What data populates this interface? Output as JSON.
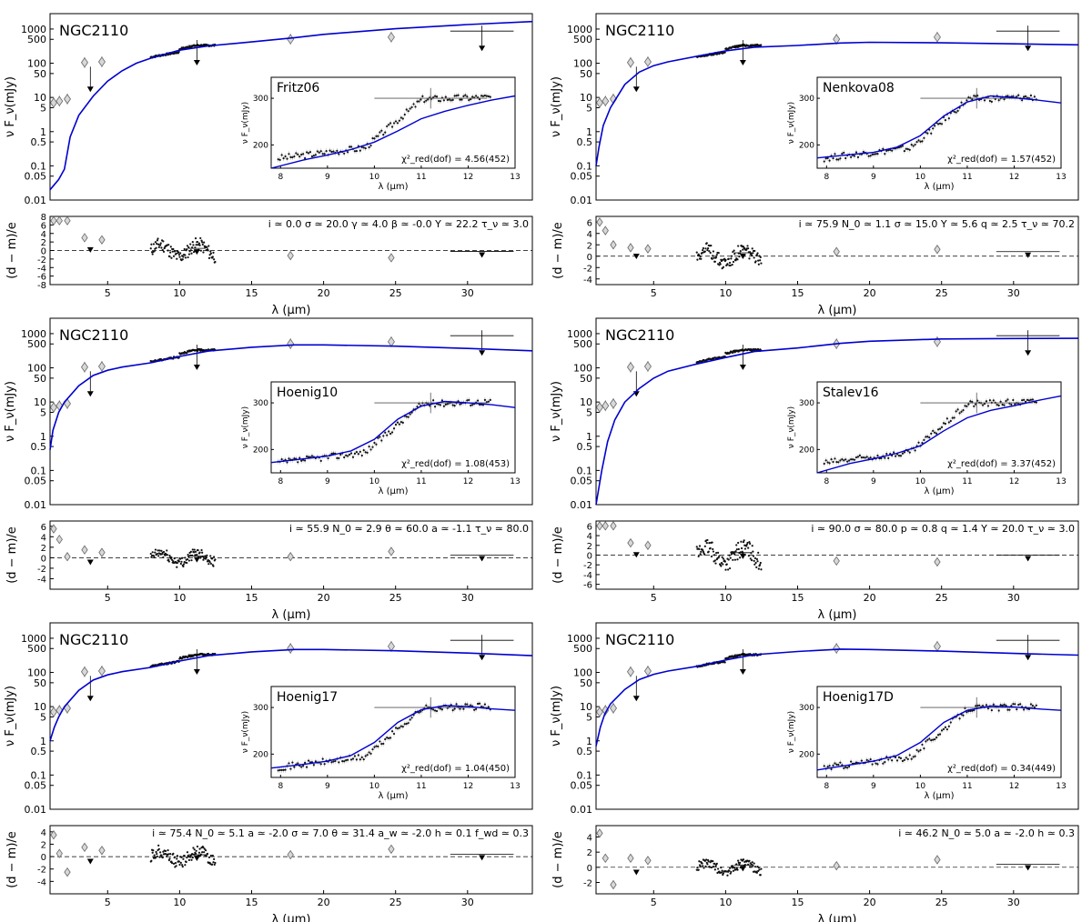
{
  "figure": {
    "object": "NGC2110",
    "sed_ylabel": "ν F_ν(mJy)",
    "res_ylabel": "(d − m)/e",
    "xlabel": "λ (μm)",
    "inset_ylabel": "ν F_ν(mJy)",
    "inset_xlabel": "λ (μm)",
    "chi2_prefix": "χ²_red(dof) = "
  },
  "chart_data": {
    "type": "scatter",
    "sed_xlim": [
      1,
      34.5
    ],
    "sed_ylim_log10": [
      -2,
      3.45
    ],
    "sed_yticks": [
      {
        "v": 1000,
        "l": "1000"
      },
      {
        "v": 500,
        "l": "500"
      },
      {
        "v": 100,
        "l": "100"
      },
      {
        "v": 50,
        "l": "50"
      },
      {
        "v": 10,
        "l": "10"
      },
      {
        "v": 5,
        "l": "5"
      },
      {
        "v": 1,
        "l": "1"
      },
      {
        "v": 0.5,
        "l": "0.5"
      },
      {
        "v": 0.1,
        "l": "0.1"
      },
      {
        "v": 0.05,
        "l": "0.05"
      },
      {
        "v": 0.01,
        "l": "0.01"
      }
    ],
    "sed_xticks": [
      5,
      10,
      15,
      20,
      25,
      30
    ],
    "inset_xlim": [
      7.8,
      13
    ],
    "inset_ylim": [
      150,
      345
    ],
    "inset_xticks": [
      8,
      9,
      10,
      11,
      12,
      13
    ],
    "inset_yticks": [
      200,
      300
    ],
    "photometry": [
      {
        "x": 1.25,
        "y": 7
      },
      {
        "x": 1.65,
        "y": 7.8
      },
      {
        "x": 2.2,
        "y": 9
      },
      {
        "x": 3.4,
        "y": 105
      },
      {
        "x": 4.6,
        "y": 110
      },
      {
        "x": 17.7,
        "y": 505
      },
      {
        "x": 24.7,
        "y": 580
      }
    ],
    "upper_limits": [
      {
        "x": 3.8,
        "y": 55,
        "xerr": 0
      },
      {
        "x": 11.2,
        "y": 330,
        "xerr": 0.6
      },
      {
        "x": 31.0,
        "y": 870,
        "xerr": 2.2
      }
    ],
    "panels": [
      {
        "model": "Fritz06",
        "chi2": "4.56(452)",
        "params": [
          "i ≃ 0.0",
          "σ ≃ 20.0",
          "γ ≃ 4.0",
          "β ≃ -0.0",
          "Y ≃ 22.2",
          "τ_ν ≃ 3.0"
        ],
        "res_ylim": [
          -8,
          8
        ],
        "res_yticks": [
          8,
          6,
          4,
          2,
          0,
          -2,
          -4,
          -6,
          -8
        ],
        "res_phot": [
          7,
          7,
          7,
          3,
          2.5,
          -1.2,
          -1.7
        ],
        "res_ul": [
          1,
          0.5,
          -0.2
        ],
        "res_spec_amp": 3.2,
        "model_sed": [
          [
            1,
            0.02
          ],
          [
            1.6,
            0.04
          ],
          [
            2.0,
            0.08
          ],
          [
            2.4,
            0.7
          ],
          [
            3,
            3
          ],
          [
            4,
            11
          ],
          [
            5,
            30
          ],
          [
            6,
            60
          ],
          [
            7,
            100
          ],
          [
            8,
            140
          ],
          [
            10,
            240
          ],
          [
            12,
            320
          ],
          [
            15,
            420
          ],
          [
            18,
            560
          ],
          [
            20,
            700
          ],
          [
            25,
            1020
          ],
          [
            30,
            1350
          ],
          [
            34.5,
            1650
          ]
        ],
        "model_inset": [
          [
            7.8,
            145
          ],
          [
            8.5,
            168
          ],
          [
            9,
            178
          ],
          [
            9.5,
            190
          ],
          [
            10,
            206
          ],
          [
            10.5,
            230
          ],
          [
            11,
            256
          ],
          [
            11.5,
            272
          ],
          [
            12,
            285
          ],
          [
            12.5,
            296
          ],
          [
            13,
            305
          ]
        ]
      },
      {
        "model": "Nenkova08",
        "chi2": "1.57(452)",
        "params": [
          "i ≃ 75.9",
          "N_0 ≃ 1.1",
          "σ ≃ 15.0",
          "Y ≃ 5.6",
          "q ≃ 2.5",
          "τ_ν ≃ 70.2"
        ],
        "res_ylim": [
          -5,
          7
        ],
        "res_yticks": [
          6,
          4,
          2,
          0,
          -2,
          -4
        ],
        "res_phot": [
          6,
          4.5,
          2,
          1.5,
          1.3,
          0.8,
          1.2
        ],
        "res_ul": [
          0.6,
          0.6,
          0.8
        ],
        "res_spec_amp": 2.5,
        "model_sed": [
          [
            1,
            0.1
          ],
          [
            1.2,
            0.35
          ],
          [
            1.5,
            1.5
          ],
          [
            2,
            5
          ],
          [
            3,
            24
          ],
          [
            4,
            55
          ],
          [
            5,
            85
          ],
          [
            6,
            110
          ],
          [
            8,
            160
          ],
          [
            10,
            230
          ],
          [
            12,
            295
          ],
          [
            15,
            330
          ],
          [
            18,
            390
          ],
          [
            20,
            410
          ],
          [
            25,
            395
          ],
          [
            30,
            370
          ],
          [
            34.5,
            345
          ]
        ],
        "model_inset": [
          [
            7.8,
            172
          ],
          [
            8.5,
            179
          ],
          [
            9,
            184
          ],
          [
            9.5,
            195
          ],
          [
            10,
            220
          ],
          [
            10.5,
            262
          ],
          [
            11,
            292
          ],
          [
            11.5,
            305
          ],
          [
            12,
            301
          ],
          [
            12.5,
            296
          ],
          [
            13,
            290
          ]
        ]
      },
      {
        "model": "Hoenig10",
        "chi2": "1.08(453)",
        "params": [
          "i ≃ 55.9",
          "N_0 ≃ 2.9",
          "θ ≃ 60.0",
          "a ≃ -1.1",
          "τ_ν ≃ 80.0"
        ],
        "res_ylim": [
          -6,
          7
        ],
        "res_yticks": [
          6,
          4,
          2,
          0,
          -2,
          -4
        ],
        "res_phot": [
          5.5,
          3.5,
          0.2,
          1.5,
          1,
          0.2,
          1.2
        ],
        "res_ul": [
          -0.2,
          0.3,
          0.5
        ],
        "res_spec_amp": 2.0,
        "model_sed": [
          [
            1,
            0.4
          ],
          [
            1.2,
            1.5
          ],
          [
            1.6,
            5
          ],
          [
            2,
            10
          ],
          [
            3,
            30
          ],
          [
            4,
            60
          ],
          [
            5,
            85
          ],
          [
            6,
            105
          ],
          [
            8,
            140
          ],
          [
            10,
            215
          ],
          [
            12,
            310
          ],
          [
            15,
            400
          ],
          [
            18,
            470
          ],
          [
            20,
            470
          ],
          [
            25,
            430
          ],
          [
            30,
            370
          ],
          [
            34.5,
            315
          ]
        ],
        "model_inset": [
          [
            7.8,
            172
          ],
          [
            8.5,
            180
          ],
          [
            9,
            186
          ],
          [
            9.5,
            197
          ],
          [
            10,
            222
          ],
          [
            10.5,
            265
          ],
          [
            11,
            293
          ],
          [
            11.5,
            303
          ],
          [
            12,
            300
          ],
          [
            12.5,
            296
          ],
          [
            13,
            290
          ]
        ]
      },
      {
        "model": "Stalev16",
        "chi2": "3.37(452)",
        "params": [
          "i ≃ 90.0",
          "σ ≃ 80.0",
          "p ≃ 0.8",
          "q ≃ 1.4",
          "Y ≃ 20.0",
          "τ_ν ≃ 3.0"
        ],
        "res_ylim": [
          -7,
          7
        ],
        "res_yticks": [
          6,
          4,
          2,
          0,
          -2,
          -4,
          -6
        ],
        "res_phot": [
          6,
          6,
          6,
          2.5,
          2,
          -1.2,
          -1.4
        ],
        "res_ul": [
          0.8,
          0.5,
          0
        ],
        "res_spec_amp": 3.5,
        "model_sed": [
          [
            1,
            0.01
          ],
          [
            1.4,
            0.1
          ],
          [
            1.8,
            0.7
          ],
          [
            2.3,
            3
          ],
          [
            3,
            10
          ],
          [
            4,
            25
          ],
          [
            5,
            50
          ],
          [
            6,
            80
          ],
          [
            8,
            130
          ],
          [
            10,
            200
          ],
          [
            12,
            300
          ],
          [
            15,
            380
          ],
          [
            18,
            520
          ],
          [
            20,
            600
          ],
          [
            25,
            700
          ],
          [
            30,
            720
          ],
          [
            34.5,
            730
          ]
        ],
        "model_inset": [
          [
            7.8,
            150
          ],
          [
            8.5,
            170
          ],
          [
            9,
            180
          ],
          [
            9.5,
            192
          ],
          [
            10,
            208
          ],
          [
            10.5,
            240
          ],
          [
            11,
            268
          ],
          [
            11.5,
            284
          ],
          [
            12,
            294
          ],
          [
            12.5,
            305
          ],
          [
            13,
            315
          ]
        ]
      },
      {
        "model": "Hoenig17",
        "chi2": "1.04(450)",
        "params": [
          "i ≃ 75.4",
          "N_0 ≃ 5.1",
          "a ≃ -2.0",
          "σ ≃ 7.0",
          "θ ≃ 31.4",
          "a_w ≃ -2.0",
          "h ≃ 0.1",
          "f_wd ≃ 0.3"
        ],
        "res_ylim": [
          -6,
          5
        ],
        "res_yticks": [
          4,
          2,
          0,
          -2,
          -4
        ],
        "res_phot": [
          3.5,
          0.5,
          -2.5,
          1.5,
          1,
          0.3,
          1.2
        ],
        "res_ul": [
          -0.2,
          0.3,
          0.4
        ],
        "res_spec_amp": 2.0,
        "model_sed": [
          [
            1,
            1
          ],
          [
            1.3,
            2.5
          ],
          [
            1.6,
            5
          ],
          [
            2,
            10
          ],
          [
            3,
            30
          ],
          [
            4,
            60
          ],
          [
            5,
            85
          ],
          [
            6,
            105
          ],
          [
            8,
            140
          ],
          [
            10,
            215
          ],
          [
            12,
            310
          ],
          [
            15,
            400
          ],
          [
            18,
            470
          ],
          [
            20,
            470
          ],
          [
            25,
            430
          ],
          [
            30,
            370
          ],
          [
            34.5,
            310
          ]
        ],
        "model_inset": [
          [
            7.8,
            170
          ],
          [
            8.5,
            178
          ],
          [
            9,
            185
          ],
          [
            9.5,
            197
          ],
          [
            10,
            225
          ],
          [
            10.5,
            268
          ],
          [
            11,
            295
          ],
          [
            11.5,
            304
          ],
          [
            12,
            302
          ],
          [
            12.5,
            297
          ],
          [
            13,
            294
          ]
        ]
      },
      {
        "model": "Hoenig17D",
        "chi2": "0.34(449)",
        "params": [
          "i ≃ 46.2",
          "N_0 ≃ 5.0",
          "a ≃ -2.0",
          "h ≃ 0.3"
        ],
        "res_ylim": [
          -3.5,
          5.5
        ],
        "res_yticks": [
          4,
          2,
          0,
          -2
        ],
        "res_phot": [
          4.5,
          1.2,
          -2.3,
          1.2,
          0.9,
          0.2,
          1
        ],
        "res_ul": [
          -0.2,
          0.3,
          0.4
        ],
        "res_spec_amp": 1.2,
        "model_sed": [
          [
            1,
            0.7
          ],
          [
            1.3,
            2.5
          ],
          [
            1.6,
            6
          ],
          [
            2,
            12
          ],
          [
            3,
            32
          ],
          [
            4,
            62
          ],
          [
            5,
            88
          ],
          [
            6,
            110
          ],
          [
            8,
            150
          ],
          [
            10,
            230
          ],
          [
            12,
            330
          ],
          [
            15,
            410
          ],
          [
            18,
            480
          ],
          [
            20,
            470
          ],
          [
            25,
            420
          ],
          [
            30,
            360
          ],
          [
            34.5,
            320
          ]
        ],
        "model_inset": [
          [
            7.8,
            166
          ],
          [
            8.5,
            177
          ],
          [
            9,
            185
          ],
          [
            9.5,
            197
          ],
          [
            10,
            225
          ],
          [
            10.5,
            268
          ],
          [
            11,
            294
          ],
          [
            11.5,
            303
          ],
          [
            12,
            301
          ],
          [
            12.5,
            297
          ],
          [
            13,
            294
          ]
        ]
      }
    ]
  }
}
